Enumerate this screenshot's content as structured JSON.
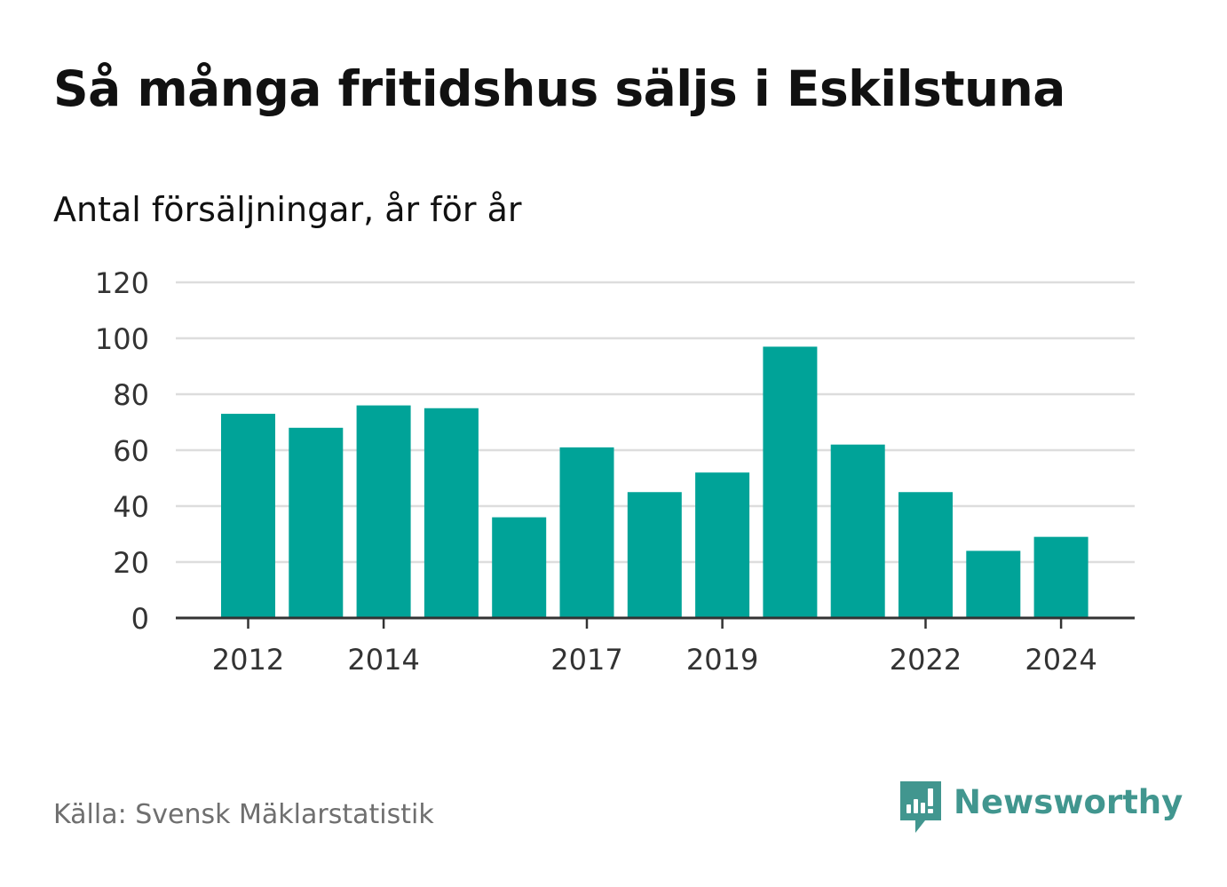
{
  "title": "Så många fritidshus säljs i Eskilstuna",
  "subtitle": "Antal försäljningar, år för år",
  "source": "Källa: Svensk Mäklarstatistik",
  "brand": {
    "name": "Newsworthy",
    "icon": "newsworthy-logo-icon",
    "color": "#41968f"
  },
  "colors": {
    "bar": "#00a398",
    "grid": "#dddddd",
    "axis": "#333333",
    "text": "#333333"
  },
  "chart_data": {
    "type": "bar",
    "categories": [
      "2012",
      "2013",
      "2014",
      "2015",
      "2016",
      "2017",
      "2018",
      "2019",
      "2020",
      "2021",
      "2022",
      "2023",
      "2024"
    ],
    "values": [
      73,
      68,
      76,
      75,
      36,
      61,
      45,
      52,
      97,
      62,
      45,
      24,
      29
    ],
    "x_tick_labels": [
      "2012",
      "2014",
      "2017",
      "2019",
      "2022",
      "2024"
    ],
    "y_ticks": [
      0,
      20,
      40,
      60,
      80,
      100,
      120
    ],
    "ylim": [
      0,
      120
    ],
    "grid": true,
    "legend": false
  }
}
